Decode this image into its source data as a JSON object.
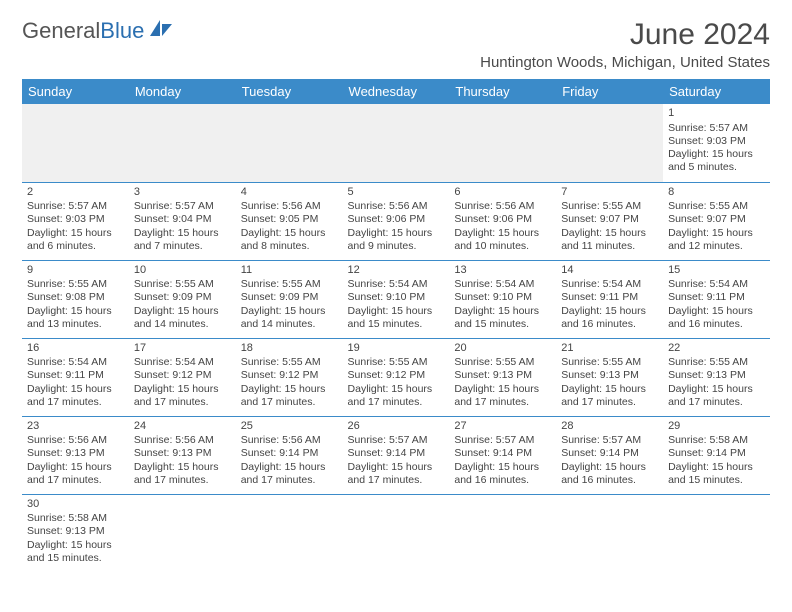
{
  "logo": {
    "part1": "General",
    "part2": "Blue"
  },
  "title": "June 2024",
  "subtitle": "Huntington Woods, Michigan, United States",
  "dayHeaders": [
    "Sunday",
    "Monday",
    "Tuesday",
    "Wednesday",
    "Thursday",
    "Friday",
    "Saturday"
  ],
  "colors": {
    "headerBg": "#3b8bc9",
    "headerText": "#ffffff",
    "border": "#3b8bc9",
    "bodyText": "#444444",
    "titleText": "#4a4a4a",
    "blankBg": "#f0f0f0"
  },
  "weeks": [
    [
      null,
      null,
      null,
      null,
      null,
      null,
      {
        "n": "1",
        "sr": "Sunrise: 5:57 AM",
        "ss": "Sunset: 9:03 PM",
        "d1": "Daylight: 15 hours",
        "d2": "and 5 minutes."
      }
    ],
    [
      {
        "n": "2",
        "sr": "Sunrise: 5:57 AM",
        "ss": "Sunset: 9:03 PM",
        "d1": "Daylight: 15 hours",
        "d2": "and 6 minutes."
      },
      {
        "n": "3",
        "sr": "Sunrise: 5:57 AM",
        "ss": "Sunset: 9:04 PM",
        "d1": "Daylight: 15 hours",
        "d2": "and 7 minutes."
      },
      {
        "n": "4",
        "sr": "Sunrise: 5:56 AM",
        "ss": "Sunset: 9:05 PM",
        "d1": "Daylight: 15 hours",
        "d2": "and 8 minutes."
      },
      {
        "n": "5",
        "sr": "Sunrise: 5:56 AM",
        "ss": "Sunset: 9:06 PM",
        "d1": "Daylight: 15 hours",
        "d2": "and 9 minutes."
      },
      {
        "n": "6",
        "sr": "Sunrise: 5:56 AM",
        "ss": "Sunset: 9:06 PM",
        "d1": "Daylight: 15 hours",
        "d2": "and 10 minutes."
      },
      {
        "n": "7",
        "sr": "Sunrise: 5:55 AM",
        "ss": "Sunset: 9:07 PM",
        "d1": "Daylight: 15 hours",
        "d2": "and 11 minutes."
      },
      {
        "n": "8",
        "sr": "Sunrise: 5:55 AM",
        "ss": "Sunset: 9:07 PM",
        "d1": "Daylight: 15 hours",
        "d2": "and 12 minutes."
      }
    ],
    [
      {
        "n": "9",
        "sr": "Sunrise: 5:55 AM",
        "ss": "Sunset: 9:08 PM",
        "d1": "Daylight: 15 hours",
        "d2": "and 13 minutes."
      },
      {
        "n": "10",
        "sr": "Sunrise: 5:55 AM",
        "ss": "Sunset: 9:09 PM",
        "d1": "Daylight: 15 hours",
        "d2": "and 14 minutes."
      },
      {
        "n": "11",
        "sr": "Sunrise: 5:55 AM",
        "ss": "Sunset: 9:09 PM",
        "d1": "Daylight: 15 hours",
        "d2": "and 14 minutes."
      },
      {
        "n": "12",
        "sr": "Sunrise: 5:54 AM",
        "ss": "Sunset: 9:10 PM",
        "d1": "Daylight: 15 hours",
        "d2": "and 15 minutes."
      },
      {
        "n": "13",
        "sr": "Sunrise: 5:54 AM",
        "ss": "Sunset: 9:10 PM",
        "d1": "Daylight: 15 hours",
        "d2": "and 15 minutes."
      },
      {
        "n": "14",
        "sr": "Sunrise: 5:54 AM",
        "ss": "Sunset: 9:11 PM",
        "d1": "Daylight: 15 hours",
        "d2": "and 16 minutes."
      },
      {
        "n": "15",
        "sr": "Sunrise: 5:54 AM",
        "ss": "Sunset: 9:11 PM",
        "d1": "Daylight: 15 hours",
        "d2": "and 16 minutes."
      }
    ],
    [
      {
        "n": "16",
        "sr": "Sunrise: 5:54 AM",
        "ss": "Sunset: 9:11 PM",
        "d1": "Daylight: 15 hours",
        "d2": "and 17 minutes."
      },
      {
        "n": "17",
        "sr": "Sunrise: 5:54 AM",
        "ss": "Sunset: 9:12 PM",
        "d1": "Daylight: 15 hours",
        "d2": "and 17 minutes."
      },
      {
        "n": "18",
        "sr": "Sunrise: 5:55 AM",
        "ss": "Sunset: 9:12 PM",
        "d1": "Daylight: 15 hours",
        "d2": "and 17 minutes."
      },
      {
        "n": "19",
        "sr": "Sunrise: 5:55 AM",
        "ss": "Sunset: 9:12 PM",
        "d1": "Daylight: 15 hours",
        "d2": "and 17 minutes."
      },
      {
        "n": "20",
        "sr": "Sunrise: 5:55 AM",
        "ss": "Sunset: 9:13 PM",
        "d1": "Daylight: 15 hours",
        "d2": "and 17 minutes."
      },
      {
        "n": "21",
        "sr": "Sunrise: 5:55 AM",
        "ss": "Sunset: 9:13 PM",
        "d1": "Daylight: 15 hours",
        "d2": "and 17 minutes."
      },
      {
        "n": "22",
        "sr": "Sunrise: 5:55 AM",
        "ss": "Sunset: 9:13 PM",
        "d1": "Daylight: 15 hours",
        "d2": "and 17 minutes."
      }
    ],
    [
      {
        "n": "23",
        "sr": "Sunrise: 5:56 AM",
        "ss": "Sunset: 9:13 PM",
        "d1": "Daylight: 15 hours",
        "d2": "and 17 minutes."
      },
      {
        "n": "24",
        "sr": "Sunrise: 5:56 AM",
        "ss": "Sunset: 9:13 PM",
        "d1": "Daylight: 15 hours",
        "d2": "and 17 minutes."
      },
      {
        "n": "25",
        "sr": "Sunrise: 5:56 AM",
        "ss": "Sunset: 9:14 PM",
        "d1": "Daylight: 15 hours",
        "d2": "and 17 minutes."
      },
      {
        "n": "26",
        "sr": "Sunrise: 5:57 AM",
        "ss": "Sunset: 9:14 PM",
        "d1": "Daylight: 15 hours",
        "d2": "and 17 minutes."
      },
      {
        "n": "27",
        "sr": "Sunrise: 5:57 AM",
        "ss": "Sunset: 9:14 PM",
        "d1": "Daylight: 15 hours",
        "d2": "and 16 minutes."
      },
      {
        "n": "28",
        "sr": "Sunrise: 5:57 AM",
        "ss": "Sunset: 9:14 PM",
        "d1": "Daylight: 15 hours",
        "d2": "and 16 minutes."
      },
      {
        "n": "29",
        "sr": "Sunrise: 5:58 AM",
        "ss": "Sunset: 9:14 PM",
        "d1": "Daylight: 15 hours",
        "d2": "and 15 minutes."
      }
    ],
    [
      {
        "n": "30",
        "sr": "Sunrise: 5:58 AM",
        "ss": "Sunset: 9:13 PM",
        "d1": "Daylight: 15 hours",
        "d2": "and 15 minutes."
      },
      null,
      null,
      null,
      null,
      null,
      null
    ]
  ]
}
